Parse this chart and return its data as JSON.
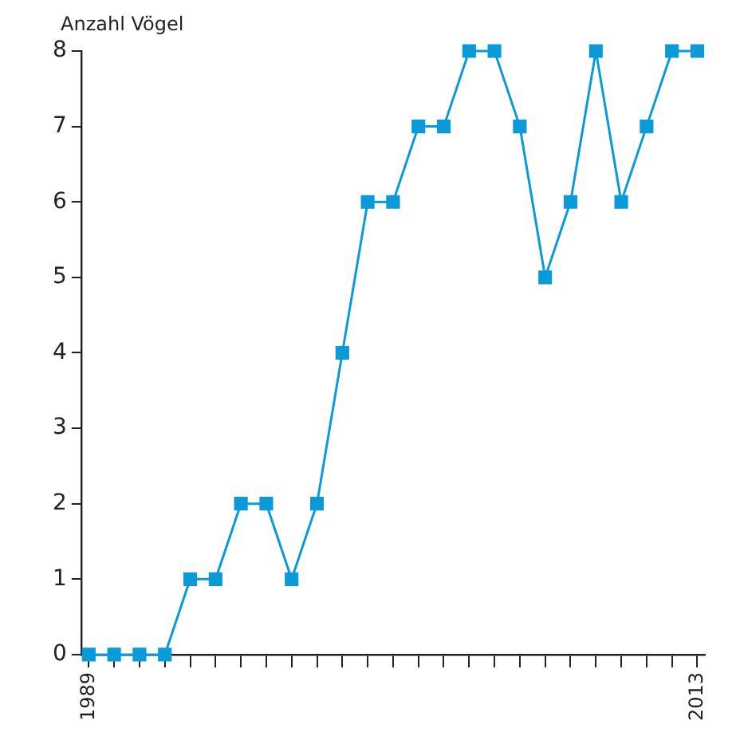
{
  "chart_data": {
    "type": "line",
    "ylabel": "Anzahl Vögel",
    "x": [
      1989,
      1990,
      1991,
      1992,
      1993,
      1994,
      1995,
      1996,
      1997,
      1998,
      1999,
      2000,
      2001,
      2002,
      2003,
      2004,
      2005,
      2006,
      2007,
      2008,
      2009,
      2010,
      2011,
      2012,
      2013
    ],
    "series": [
      {
        "color": "#0a9ad8",
        "values": [
          0,
          0,
          0,
          0,
          1,
          1,
          2,
          2,
          1,
          2,
          4,
          6,
          6,
          7,
          7,
          8,
          8,
          7,
          5,
          6,
          8,
          6,
          7,
          8,
          8
        ]
      }
    ],
    "xlim": [
      1988.7,
      2013.3
    ],
    "xticks": [
      1989,
      {
        "value": 1990,
        "label": null
      },
      {
        "value": 1991,
        "label": null
      },
      {
        "value": 1992,
        "label": null
      },
      {
        "value": 1993,
        "label": null
      },
      {
        "value": 1994,
        "label": null
      },
      {
        "value": 1995,
        "label": null
      },
      {
        "value": 1996,
        "label": null
      },
      {
        "value": 1997,
        "label": null
      },
      {
        "value": 1998,
        "label": null
      },
      {
        "value": 1999,
        "label": null
      },
      {
        "value": 2000,
        "label": null
      },
      {
        "value": 2001,
        "label": null
      },
      {
        "value": 2002,
        "label": null
      },
      {
        "value": 2003,
        "label": null
      },
      {
        "value": 2004,
        "label": null
      },
      {
        "value": 2005,
        "label": null
      },
      {
        "value": 2006,
        "label": null
      },
      {
        "value": 2007,
        "label": null
      },
      {
        "value": 2008,
        "label": null
      },
      {
        "value": 2009,
        "label": null
      },
      {
        "value": 2010,
        "label": null
      },
      {
        "value": 2011,
        "label": null
      },
      {
        "value": 2012,
        "label": null
      },
      2013
    ],
    "ylim": [
      0,
      8
    ],
    "yticks": [
      0,
      1,
      2,
      3,
      4,
      5,
      6,
      7,
      8
    ],
    "grid": false,
    "legend": false,
    "marker": "square",
    "line_style": "solid"
  }
}
